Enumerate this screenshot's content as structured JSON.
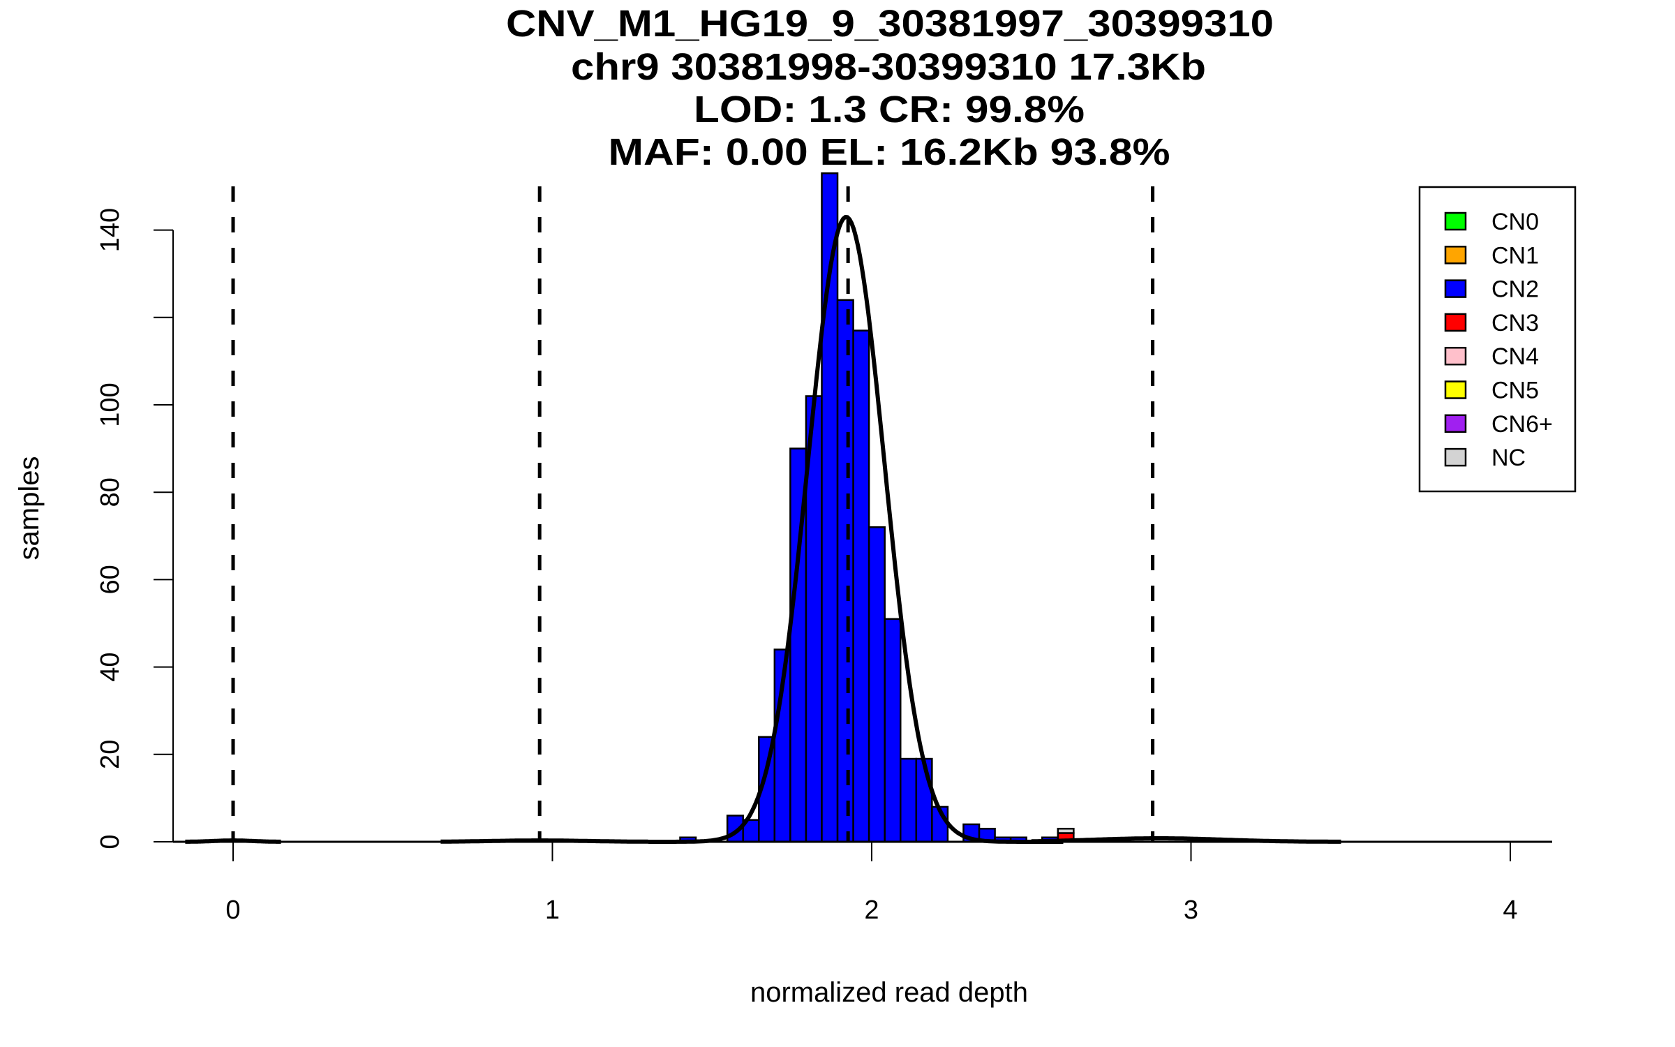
{
  "chart_data": {
    "type": "bar",
    "title_lines": [
      "CNV_M1_HG19_9_30381997_30399310",
      "chr9 30381998-30399310 17.3Kb",
      "LOD: 1.3 CR: 99.8%",
      "MAF: 0.00 EL: 16.2Kb 93.8%"
    ],
    "xlabel": "normalized read depth",
    "ylabel": "samples",
    "xlim": [
      -0.15,
      4.1
    ],
    "ylim": [
      0,
      150
    ],
    "xticks": [
      0,
      1,
      2,
      3,
      4
    ],
    "xtick_labels": [
      "0",
      "1",
      "2",
      "3",
      "4"
    ],
    "yticks": [
      0,
      20,
      40,
      60,
      80,
      100,
      120,
      140
    ],
    "ytick_labels": [
      "0",
      "20",
      "40",
      "60",
      "80",
      "100",
      "",
      "140"
    ],
    "grid": false,
    "legend_position": "top-right",
    "legend": [
      {
        "label": "CN0",
        "color": "#00ff00"
      },
      {
        "label": "CN1",
        "color": "#ffa500"
      },
      {
        "label": "CN2",
        "color": "#0000ff"
      },
      {
        "label": "CN3",
        "color": "#ff0000"
      },
      {
        "label": "CN4",
        "color": "#ffc0cb"
      },
      {
        "label": "CN5",
        "color": "#ffff00"
      },
      {
        "label": "CN6+",
        "color": "#a020f0"
      },
      {
        "label": "NC",
        "color": "#d3d3d3"
      }
    ],
    "bin_start": 1.4,
    "bin_width": 0.0493,
    "series": [
      {
        "name": "CN2",
        "color": "#0000ff",
        "values": [
          1,
          0,
          0,
          6,
          5,
          24,
          44,
          90,
          102,
          153,
          124,
          117,
          72,
          51,
          19,
          19,
          8,
          0,
          4,
          3,
          1,
          1,
          0,
          1,
          0
        ]
      },
      {
        "name": "CN3",
        "color": "#ff0000",
        "values": [
          0,
          0,
          0,
          0,
          0,
          0,
          0,
          0,
          0,
          0,
          0,
          0,
          0,
          0,
          0,
          0,
          0,
          0,
          0,
          0,
          0,
          0,
          0,
          0,
          2
        ]
      },
      {
        "name": "NC",
        "color": "#d3d3d3",
        "values": [
          0,
          0,
          0,
          0,
          0,
          0,
          0,
          0,
          0,
          0,
          0,
          0,
          0,
          0,
          0,
          0,
          0,
          0,
          0,
          0,
          0,
          0,
          0,
          0,
          1
        ]
      }
    ],
    "threshold_lines": [
      0,
      0.96,
      1.926,
      2.88
    ],
    "density_fits": [
      {
        "name": "CN0",
        "mean": 0.0,
        "sd": 0.06,
        "peak": 0.3,
        "range": [
          -0.15,
          0.15
        ]
      },
      {
        "name": "CN1",
        "mean": 0.96,
        "sd": 0.15,
        "peak": 0.3,
        "range": [
          0.65,
          1.3
        ]
      },
      {
        "name": "CN2",
        "mean": 1.92,
        "sd": 0.12,
        "peak": 143,
        "range": [
          1.3,
          2.6
        ]
      },
      {
        "name": "CN3",
        "mean": 2.9,
        "sd": 0.2,
        "peak": 0.8,
        "range": [
          2.5,
          3.47
        ]
      }
    ]
  }
}
